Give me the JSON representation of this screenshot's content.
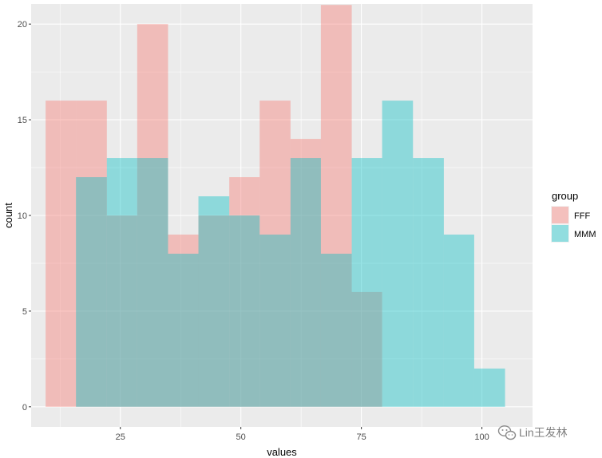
{
  "chart_data": {
    "type": "histogram",
    "xlabel": "values",
    "ylabel": "count",
    "xlim": [
      6.5,
      110.5
    ],
    "ylim": [
      -1.05,
      21.05
    ],
    "x_ticks": [
      25,
      50,
      75,
      100
    ],
    "x_tick_labels": [
      "25",
      "50",
      "75",
      "100"
    ],
    "y_ticks": [
      0,
      5,
      10,
      15,
      20
    ],
    "y_tick_labels": [
      "0",
      "5",
      "10",
      "15",
      "20"
    ],
    "grid": true,
    "legend": {
      "title": "group",
      "placement": "right",
      "entries": [
        "FFF",
        "MMM"
      ]
    },
    "series": [
      {
        "name": "FFF",
        "color": "#F8766D",
        "bins": [
          {
            "x0": 9.5,
            "x1": 15.8,
            "count": 16
          },
          {
            "x0": 15.8,
            "x1": 22.2,
            "count": 16
          },
          {
            "x0": 22.2,
            "x1": 28.5,
            "count": 10
          },
          {
            "x0": 28.5,
            "x1": 34.9,
            "count": 20
          },
          {
            "x0": 34.9,
            "x1": 41.2,
            "count": 9
          },
          {
            "x0": 41.2,
            "x1": 47.6,
            "count": 10
          },
          {
            "x0": 47.6,
            "x1": 53.9,
            "count": 12
          },
          {
            "x0": 53.9,
            "x1": 60.3,
            "count": 16
          },
          {
            "x0": 60.3,
            "x1": 66.6,
            "count": 14
          },
          {
            "x0": 66.6,
            "x1": 73.0,
            "count": 21
          },
          {
            "x0": 73.0,
            "x1": 79.3,
            "count": 6
          }
        ]
      },
      {
        "name": "MMM",
        "color": "#00BFC4",
        "bins": [
          {
            "x0": 15.8,
            "x1": 22.2,
            "count": 12
          },
          {
            "x0": 22.2,
            "x1": 28.5,
            "count": 13
          },
          {
            "x0": 28.5,
            "x1": 34.9,
            "count": 13
          },
          {
            "x0": 34.9,
            "x1": 41.2,
            "count": 8
          },
          {
            "x0": 41.2,
            "x1": 47.6,
            "count": 11
          },
          {
            "x0": 47.6,
            "x1": 53.9,
            "count": 10
          },
          {
            "x0": 53.9,
            "x1": 60.3,
            "count": 9
          },
          {
            "x0": 60.3,
            "x1": 66.6,
            "count": 13
          },
          {
            "x0": 66.6,
            "x1": 73.0,
            "count": 8
          },
          {
            "x0": 73.0,
            "x1": 79.3,
            "count": 13
          },
          {
            "x0": 79.3,
            "x1": 85.7,
            "count": 16
          },
          {
            "x0": 85.7,
            "x1": 92.1,
            "count": 13
          },
          {
            "x0": 92.1,
            "x1": 98.4,
            "count": 9
          },
          {
            "x0": 98.4,
            "x1": 104.8,
            "count": 2
          }
        ]
      }
    ]
  },
  "colors": {
    "panel_background": "#EBEBEB",
    "grid_major": "#FFFFFF",
    "bar_alpha": 0.4
  },
  "watermark": {
    "text": "Lin王发林",
    "icon": "wechat-logo-icon"
  }
}
